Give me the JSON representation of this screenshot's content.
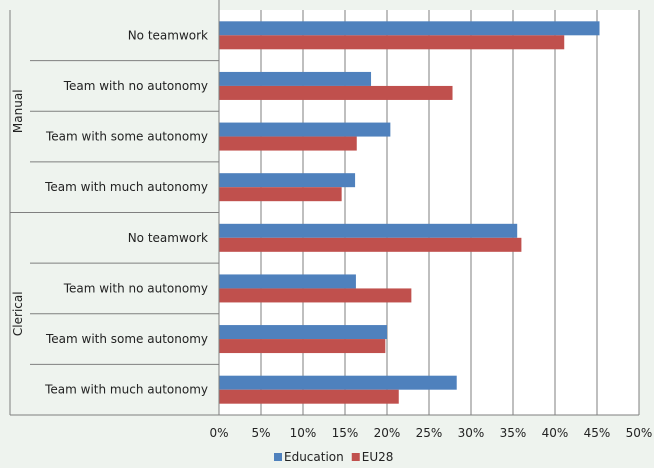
{
  "chart_data": {
    "type": "bar",
    "orientation": "horizontal",
    "groups": [
      {
        "label": "Manual",
        "categories": [
          "No teamwork",
          "Team with no autonomy",
          "Team with some autonomy",
          "Team with much autonomy"
        ]
      },
      {
        "label": "Clerical",
        "categories": [
          "No teamwork",
          "Team with no autonomy",
          "Team with some autonomy",
          "Team with much autonomy"
        ]
      }
    ],
    "series": [
      {
        "name": "Education",
        "color": "#4F81BD",
        "values": [
          45.3,
          18.1,
          20.4,
          16.2,
          35.5,
          16.3,
          20.0,
          28.3
        ]
      },
      {
        "name": "EU28",
        "color": "#C0504D",
        "values": [
          41.1,
          27.8,
          16.4,
          14.6,
          36.0,
          22.9,
          19.8,
          21.4
        ]
      }
    ],
    "x_ticks": [
      "0%",
      "5%",
      "10%",
      "15%",
      "20%",
      "25%",
      "30%",
      "35%",
      "40%",
      "45%",
      "50%"
    ],
    "xlim": [
      0,
      50
    ],
    "grid": true,
    "legend_position": "bottom",
    "title": "",
    "xlabel": "",
    "ylabel": ""
  },
  "colors": {
    "background": "#EEF3EE",
    "plot_background": "#FFFFFF",
    "gridline": "#7F7F7F",
    "text": "#222222"
  }
}
